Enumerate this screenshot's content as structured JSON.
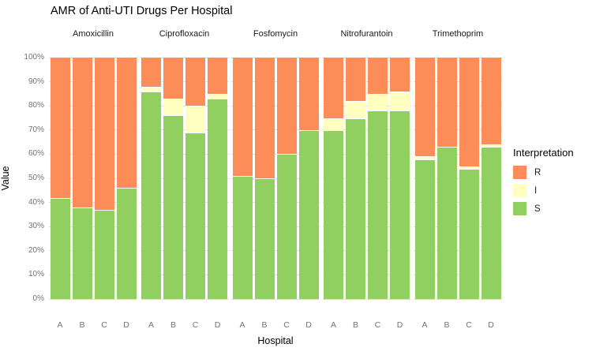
{
  "chart_data": {
    "type": "bar",
    "stacking": "percent",
    "title": "AMR of Anti-UTI Drugs Per Hospital",
    "xlabel": "Hospital",
    "ylabel": "Value",
    "ylim": [
      0,
      100
    ],
    "ytick_step": 10,
    "ytick_labels": [
      "100%",
      "90%",
      "80%",
      "70%",
      "60%",
      "50%",
      "40%",
      "30%",
      "20%",
      "10%",
      "0%"
    ],
    "grid": "on",
    "categories": [
      "A",
      "B",
      "C",
      "D"
    ],
    "legend": {
      "title": "Interpretation",
      "position": "right",
      "entries": [
        {
          "label": "R",
          "color": "#FC8D59"
        },
        {
          "label": "I",
          "color": "#FFFFBF"
        },
        {
          "label": "S",
          "color": "#91CF60"
        }
      ]
    },
    "stack_order_bottom_to_top": [
      "S",
      "I",
      "R"
    ],
    "facets": [
      {
        "drug": "Amoxicillin",
        "series": {
          "S": [
            42,
            38,
            37,
            46
          ],
          "I": [
            0,
            0,
            0,
            0
          ],
          "R": [
            58,
            62,
            63,
            54
          ]
        }
      },
      {
        "drug": "Ciprofloxacin",
        "series": {
          "S": [
            86,
            76,
            69,
            83
          ],
          "I": [
            2,
            7,
            11,
            2
          ],
          "R": [
            12,
            17,
            20,
            15
          ]
        }
      },
      {
        "drug": "Fosfomycin",
        "series": {
          "S": [
            51,
            50,
            60,
            70
          ],
          "I": [
            0,
            0,
            0,
            0
          ],
          "R": [
            49,
            50,
            40,
            30
          ]
        }
      },
      {
        "drug": "Nitrofurantoin",
        "series": {
          "S": [
            70,
            75,
            78,
            78
          ],
          "I": [
            5,
            7,
            7,
            8
          ],
          "R": [
            25,
            18,
            15,
            14
          ]
        }
      },
      {
        "drug": "Trimethoprim",
        "series": {
          "S": [
            58,
            63,
            54,
            63
          ],
          "I": [
            1,
            0,
            1,
            1
          ],
          "R": [
            41,
            37,
            45,
            36
          ]
        }
      }
    ]
  },
  "style_colors": {
    "background": "#FFFFFF",
    "gridline": "#DCDCDC",
    "tick_label": "#737373",
    "axis_title": "#000000",
    "strip_label": "#1A1A1A"
  }
}
